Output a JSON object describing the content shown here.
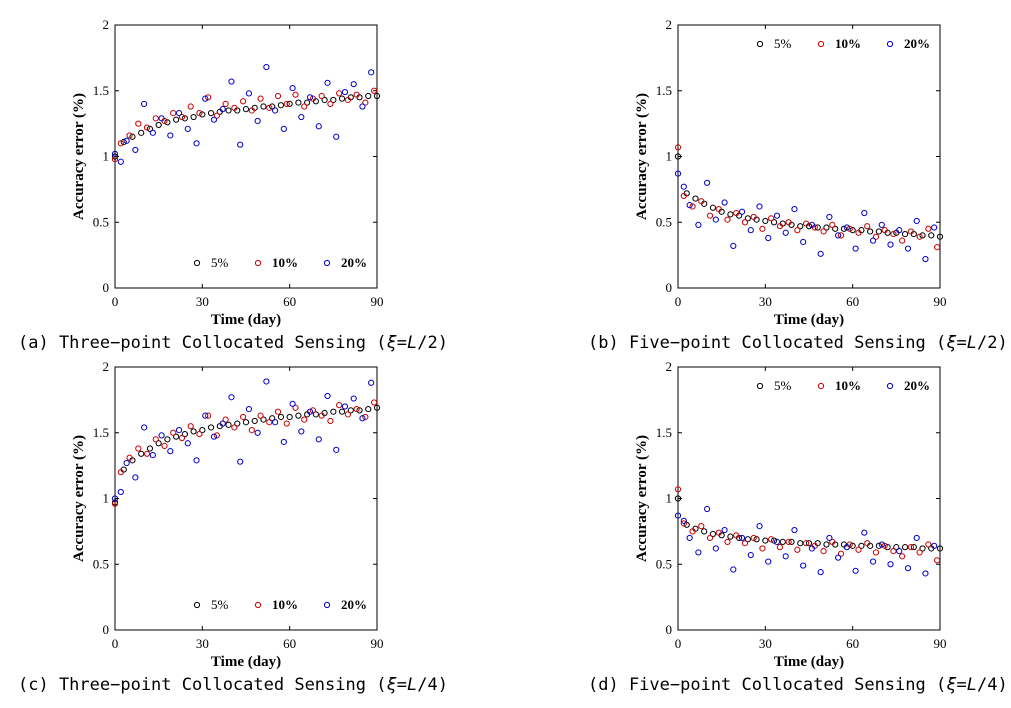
{
  "figure": {
    "panels": [
      {
        "caption_prefix": "(a) Three−point Collocated Sensing (",
        "xi": "ξ",
        "eq": "=",
        "L": "L",
        "frac": "/2",
        "close": ")"
      },
      {
        "caption_prefix": "(b) Five−point Collocated Sensing (",
        "xi": "ξ",
        "eq": "=",
        "L": "L",
        "frac": "/2",
        "close": ")"
      },
      {
        "caption_prefix": "(c) Three−point Collocated Sensing (",
        "xi": "ξ",
        "eq": "=",
        "L": "L",
        "frac": "/4",
        "close": ")"
      },
      {
        "caption_prefix": "(d) Five−point Collocated Sensing (",
        "xi": "ξ",
        "eq": "=",
        "L": "L",
        "frac": "/4",
        "close": ")"
      }
    ]
  },
  "chart_data": [
    {
      "type": "scatter",
      "xlabel": "Time (day)",
      "ylabel": "Accuracy error (%)",
      "xlim": [
        0,
        90
      ],
      "ylim": [
        0,
        2
      ],
      "xticks": [
        0,
        30,
        60,
        90
      ],
      "yticks": [
        0,
        0.5,
        1,
        1.5,
        2
      ],
      "legend_position": "bottom-right",
      "colors": {
        "5%": "#000000",
        "10%": "#cc0000",
        "20%": "#0000cc"
      },
      "series": [
        {
          "name": "5%",
          "label_color": "#000000",
          "marker_color": "#000000",
          "x": [
            0,
            3,
            6,
            9,
            12,
            15,
            18,
            21,
            24,
            27,
            30,
            33,
            36,
            39,
            42,
            45,
            48,
            51,
            54,
            57,
            60,
            63,
            66,
            69,
            72,
            75,
            78,
            81,
            84,
            87,
            90
          ],
          "y": [
            1.0,
            1.11,
            1.15,
            1.18,
            1.21,
            1.24,
            1.26,
            1.28,
            1.29,
            1.3,
            1.32,
            1.33,
            1.34,
            1.35,
            1.35,
            1.36,
            1.37,
            1.38,
            1.38,
            1.39,
            1.4,
            1.41,
            1.41,
            1.42,
            1.43,
            1.43,
            1.44,
            1.45,
            1.45,
            1.46,
            1.46
          ]
        },
        {
          "name": "10%",
          "label_color": "#dd0000",
          "marker_color": "#cc0000",
          "x": [
            0,
            2,
            5,
            8,
            11,
            14,
            17,
            20,
            23,
            26,
            29,
            32,
            35,
            38,
            41,
            44,
            47,
            50,
            53,
            56,
            59,
            62,
            65,
            68,
            71,
            74,
            77,
            80,
            83,
            86,
            89
          ],
          "y": [
            0.98,
            1.1,
            1.16,
            1.25,
            1.22,
            1.29,
            1.27,
            1.33,
            1.3,
            1.38,
            1.33,
            1.45,
            1.31,
            1.4,
            1.37,
            1.42,
            1.35,
            1.44,
            1.37,
            1.46,
            1.4,
            1.47,
            1.38,
            1.44,
            1.46,
            1.4,
            1.48,
            1.43,
            1.47,
            1.41,
            1.5
          ]
        },
        {
          "name": "20%",
          "label_color": "#0000cc",
          "marker_color": "#0000cc",
          "x": [
            0,
            2,
            4,
            7,
            10,
            13,
            16,
            19,
            22,
            25,
            28,
            31,
            34,
            37,
            40,
            43,
            46,
            49,
            52,
            55,
            58,
            61,
            64,
            67,
            70,
            73,
            76,
            79,
            82,
            85,
            88
          ],
          "y": [
            1.02,
            0.96,
            1.12,
            1.05,
            1.4,
            1.18,
            1.29,
            1.16,
            1.33,
            1.21,
            1.1,
            1.44,
            1.28,
            1.36,
            1.57,
            1.09,
            1.48,
            1.27,
            1.68,
            1.35,
            1.21,
            1.52,
            1.3,
            1.45,
            1.23,
            1.56,
            1.15,
            1.49,
            1.55,
            1.38,
            1.64
          ]
        }
      ]
    },
    {
      "type": "scatter",
      "xlabel": "Time (day)",
      "ylabel": "Accuracy error (%)",
      "xlim": [
        0,
        90
      ],
      "ylim": [
        0,
        2
      ],
      "xticks": [
        0,
        30,
        60,
        90
      ],
      "yticks": [
        0,
        0.5,
        1,
        1.5,
        2
      ],
      "legend_position": "top-right",
      "colors": {
        "5%": "#000000",
        "10%": "#cc0000",
        "20%": "#0000cc"
      },
      "series": [
        {
          "name": "5%",
          "label_color": "#000000",
          "marker_color": "#000000",
          "x": [
            0,
            3,
            6,
            9,
            12,
            15,
            18,
            21,
            24,
            27,
            30,
            33,
            36,
            39,
            42,
            45,
            48,
            51,
            54,
            57,
            60,
            63,
            66,
            69,
            72,
            75,
            78,
            81,
            84,
            87,
            90
          ],
          "y": [
            1.0,
            0.72,
            0.68,
            0.64,
            0.61,
            0.58,
            0.56,
            0.55,
            0.53,
            0.52,
            0.51,
            0.5,
            0.49,
            0.48,
            0.47,
            0.47,
            0.46,
            0.46,
            0.45,
            0.45,
            0.44,
            0.44,
            0.43,
            0.43,
            0.42,
            0.42,
            0.41,
            0.41,
            0.4,
            0.4,
            0.39
          ]
        },
        {
          "name": "10%",
          "label_color": "#dd0000",
          "marker_color": "#cc0000",
          "x": [
            0,
            2,
            5,
            8,
            11,
            14,
            17,
            20,
            23,
            26,
            29,
            32,
            35,
            38,
            41,
            44,
            47,
            50,
            53,
            56,
            59,
            62,
            65,
            68,
            71,
            74,
            77,
            80,
            83,
            86,
            89
          ],
          "y": [
            1.07,
            0.7,
            0.62,
            0.66,
            0.55,
            0.6,
            0.52,
            0.57,
            0.5,
            0.54,
            0.45,
            0.53,
            0.47,
            0.5,
            0.44,
            0.49,
            0.46,
            0.43,
            0.48,
            0.4,
            0.45,
            0.42,
            0.47,
            0.39,
            0.44,
            0.41,
            0.36,
            0.43,
            0.39,
            0.45,
            0.31
          ]
        },
        {
          "name": "20%",
          "label_color": "#0000cc",
          "marker_color": "#0000cc",
          "x": [
            0,
            2,
            4,
            7,
            10,
            13,
            16,
            19,
            22,
            25,
            28,
            31,
            34,
            37,
            40,
            43,
            46,
            49,
            52,
            55,
            58,
            61,
            64,
            67,
            70,
            73,
            76,
            79,
            82,
            85,
            88
          ],
          "y": [
            0.87,
            0.77,
            0.63,
            0.48,
            0.8,
            0.52,
            0.65,
            0.32,
            0.58,
            0.44,
            0.62,
            0.38,
            0.55,
            0.42,
            0.6,
            0.35,
            0.48,
            0.26,
            0.54,
            0.4,
            0.46,
            0.3,
            0.57,
            0.36,
            0.48,
            0.33,
            0.44,
            0.3,
            0.51,
            0.22,
            0.46
          ]
        }
      ]
    },
    {
      "type": "scatter",
      "xlabel": "Time (day)",
      "ylabel": "Accuracy error (%)",
      "xlim": [
        0,
        90
      ],
      "ylim": [
        0,
        2
      ],
      "xticks": [
        0,
        30,
        60,
        90
      ],
      "yticks": [
        0,
        0.5,
        1,
        1.5,
        2
      ],
      "legend_position": "bottom-right",
      "colors": {
        "5%": "#000000",
        "10%": "#cc0000",
        "20%": "#0000cc"
      },
      "series": [
        {
          "name": "5%",
          "label_color": "#000000",
          "marker_color": "#000000",
          "x": [
            0,
            3,
            6,
            9,
            12,
            15,
            18,
            21,
            24,
            27,
            30,
            33,
            36,
            39,
            42,
            45,
            48,
            51,
            54,
            57,
            60,
            63,
            66,
            69,
            72,
            75,
            78,
            81,
            84,
            87,
            90
          ],
          "y": [
            0.97,
            1.22,
            1.29,
            1.34,
            1.38,
            1.42,
            1.45,
            1.47,
            1.49,
            1.51,
            1.52,
            1.54,
            1.55,
            1.56,
            1.57,
            1.58,
            1.59,
            1.6,
            1.61,
            1.62,
            1.62,
            1.63,
            1.64,
            1.64,
            1.65,
            1.66,
            1.66,
            1.67,
            1.67,
            1.68,
            1.69
          ]
        },
        {
          "name": "10%",
          "label_color": "#dd0000",
          "marker_color": "#cc0000",
          "x": [
            0,
            2,
            5,
            8,
            11,
            14,
            17,
            20,
            23,
            26,
            29,
            32,
            35,
            38,
            41,
            44,
            47,
            50,
            53,
            56,
            59,
            62,
            65,
            68,
            71,
            74,
            77,
            80,
            83,
            86,
            89
          ],
          "y": [
            0.96,
            1.2,
            1.31,
            1.38,
            1.34,
            1.45,
            1.4,
            1.5,
            1.46,
            1.55,
            1.49,
            1.63,
            1.48,
            1.6,
            1.54,
            1.62,
            1.52,
            1.63,
            1.58,
            1.66,
            1.57,
            1.69,
            1.6,
            1.67,
            1.63,
            1.59,
            1.71,
            1.64,
            1.68,
            1.62,
            1.73
          ]
        },
        {
          "name": "20%",
          "label_color": "#0000cc",
          "marker_color": "#0000cc",
          "x": [
            0,
            2,
            4,
            7,
            10,
            13,
            16,
            19,
            22,
            25,
            28,
            31,
            34,
            37,
            40,
            43,
            46,
            49,
            52,
            55,
            58,
            61,
            64,
            67,
            70,
            73,
            76,
            79,
            82,
            85,
            88
          ],
          "y": [
            1.0,
            1.05,
            1.27,
            1.16,
            1.54,
            1.33,
            1.48,
            1.36,
            1.52,
            1.42,
            1.29,
            1.63,
            1.47,
            1.57,
            1.77,
            1.28,
            1.68,
            1.5,
            1.89,
            1.58,
            1.43,
            1.72,
            1.51,
            1.66,
            1.45,
            1.78,
            1.37,
            1.7,
            1.76,
            1.61,
            1.88
          ]
        }
      ]
    },
    {
      "type": "scatter",
      "xlabel": "Time (day)",
      "ylabel": "Accuracy error (%)",
      "xlim": [
        0,
        90
      ],
      "ylim": [
        0,
        2
      ],
      "xticks": [
        0,
        30,
        60,
        90
      ],
      "yticks": [
        0,
        0.5,
        1,
        1.5,
        2
      ],
      "legend_position": "top-right",
      "colors": {
        "5%": "#000000",
        "10%": "#cc0000",
        "20%": "#0000cc"
      },
      "series": [
        {
          "name": "5%",
          "label_color": "#000000",
          "marker_color": "#000000",
          "x": [
            0,
            3,
            6,
            9,
            12,
            15,
            18,
            21,
            24,
            27,
            30,
            33,
            36,
            39,
            42,
            45,
            48,
            51,
            54,
            57,
            60,
            63,
            66,
            69,
            72,
            75,
            78,
            81,
            84,
            87,
            90
          ],
          "y": [
            1.0,
            0.8,
            0.77,
            0.75,
            0.73,
            0.72,
            0.71,
            0.7,
            0.69,
            0.69,
            0.68,
            0.68,
            0.67,
            0.67,
            0.66,
            0.66,
            0.66,
            0.65,
            0.65,
            0.65,
            0.64,
            0.64,
            0.64,
            0.64,
            0.63,
            0.63,
            0.63,
            0.63,
            0.62,
            0.62,
            0.62
          ]
        },
        {
          "name": "10%",
          "label_color": "#dd0000",
          "marker_color": "#cc0000",
          "x": [
            0,
            2,
            5,
            8,
            11,
            14,
            17,
            20,
            23,
            26,
            29,
            32,
            35,
            38,
            41,
            44,
            47,
            50,
            53,
            56,
            59,
            62,
            65,
            68,
            71,
            74,
            77,
            80,
            83,
            86,
            89
          ],
          "y": [
            1.07,
            0.81,
            0.75,
            0.79,
            0.7,
            0.74,
            0.67,
            0.72,
            0.66,
            0.7,
            0.62,
            0.69,
            0.63,
            0.67,
            0.61,
            0.66,
            0.64,
            0.6,
            0.67,
            0.58,
            0.65,
            0.61,
            0.66,
            0.59,
            0.64,
            0.6,
            0.56,
            0.63,
            0.59,
            0.65,
            0.53
          ]
        },
        {
          "name": "20%",
          "label_color": "#0000cc",
          "marker_color": "#0000cc",
          "x": [
            0,
            2,
            4,
            7,
            10,
            13,
            16,
            19,
            22,
            25,
            28,
            31,
            34,
            37,
            40,
            43,
            46,
            49,
            52,
            55,
            58,
            61,
            64,
            67,
            70,
            73,
            76,
            79,
            82,
            85,
            88
          ],
          "y": [
            0.87,
            0.83,
            0.7,
            0.59,
            0.92,
            0.62,
            0.76,
            0.46,
            0.7,
            0.57,
            0.79,
            0.52,
            0.67,
            0.56,
            0.76,
            0.49,
            0.62,
            0.44,
            0.7,
            0.55,
            0.63,
            0.45,
            0.74,
            0.52,
            0.65,
            0.5,
            0.6,
            0.47,
            0.7,
            0.43,
            0.64
          ]
        }
      ]
    }
  ]
}
